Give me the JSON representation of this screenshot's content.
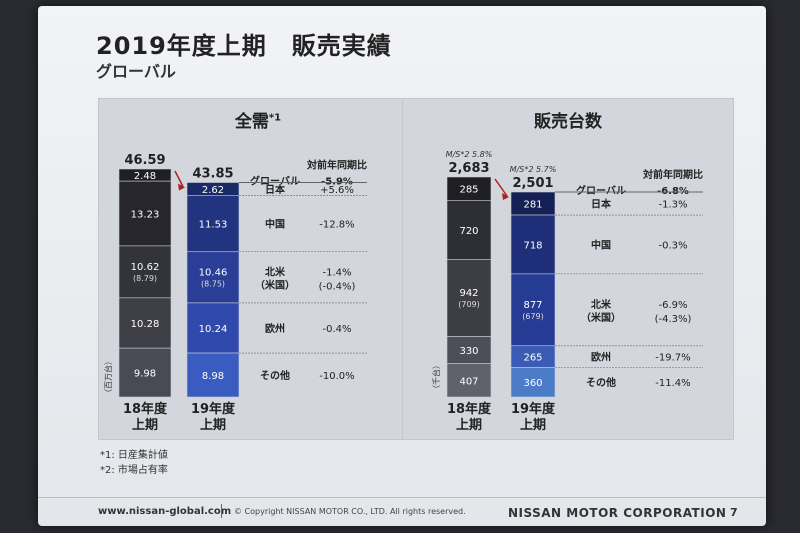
{
  "slide": {
    "title": "2019年度上期　販売実績",
    "subtitle": "グローバル",
    "footnote1": "*1: 日産集計値",
    "footnote2": "*2: 市場占有率",
    "url": "www.nissan-global.com",
    "copyright": "© Copyright NISSAN MOTOR CO., LTD. All rights reserved.",
    "brand": "NISSAN MOTOR CORPORATION",
    "page": "7"
  },
  "chart_data": [
    {
      "type": "bar",
      "title": "全需",
      "title_sup": "*1",
      "unit_label": "（百万台）",
      "ratio_header": "対前年同期比",
      "categories": [
        "18年度\n上期",
        "19年度\n上期"
      ],
      "totals": [
        "46.59",
        "43.85"
      ],
      "segments": [
        {
          "name": "日本",
          "values": [
            2.48,
            2.62
          ],
          "labels": [
            "2.48",
            "2.62"
          ],
          "sub": [
            "",
            ""
          ],
          "ratio": "+5.6%",
          "ratio_sub": ""
        },
        {
          "name": "中国",
          "values": [
            13.23,
            11.53
          ],
          "labels": [
            "13.23",
            "11.53"
          ],
          "sub": [
            "",
            ""
          ],
          "ratio": "-12.8%",
          "ratio_sub": ""
        },
        {
          "name": "北米\n（米国）",
          "values": [
            10.62,
            10.46
          ],
          "labels": [
            "10.62",
            "10.46"
          ],
          "sub": [
            "(8.79)",
            "(8.75)"
          ],
          "ratio": "-1.4%",
          "ratio_sub": "(-0.4%)"
        },
        {
          "name": "欧州",
          "values": [
            10.28,
            10.24
          ],
          "labels": [
            "10.28",
            "10.24"
          ],
          "sub": [
            "",
            ""
          ],
          "ratio": "-0.4%",
          "ratio_sub": ""
        },
        {
          "name": "その他",
          "values": [
            9.98,
            8.98
          ],
          "labels": [
            "9.98",
            "8.98"
          ],
          "sub": [
            "",
            ""
          ],
          "ratio": "-10.0%",
          "ratio_sub": ""
        }
      ],
      "global_label": "グローバル",
      "global_ratio": "-5.9%",
      "ms": [
        "",
        ""
      ]
    },
    {
      "type": "bar",
      "title": "販売台数",
      "title_sup": "",
      "unit_label": "（千台）",
      "ratio_header": "対前年同期比",
      "categories": [
        "18年度\n上期",
        "19年度\n上期"
      ],
      "totals": [
        "2,683",
        "2,501"
      ],
      "segments": [
        {
          "name": "日本",
          "values": [
            285,
            281
          ],
          "labels": [
            "285",
            "281"
          ],
          "sub": [
            "",
            ""
          ],
          "ratio": "-1.3%",
          "ratio_sub": ""
        },
        {
          "name": "中国",
          "values": [
            720,
            718
          ],
          "labels": [
            "720",
            "718"
          ],
          "sub": [
            "",
            ""
          ],
          "ratio": "-0.3%",
          "ratio_sub": ""
        },
        {
          "name": "北米\n（米国）",
          "values": [
            942,
            877
          ],
          "labels": [
            "942",
            "877"
          ],
          "sub": [
            "(709)",
            "(679)"
          ],
          "ratio": "-6.9%",
          "ratio_sub": "(-4.3%)"
        },
        {
          "name": "欧州",
          "values": [
            330,
            265
          ],
          "labels": [
            "330",
            "265"
          ],
          "sub": [
            "",
            ""
          ],
          "ratio": "-19.7%",
          "ratio_sub": ""
        },
        {
          "name": "その他",
          "values": [
            407,
            360
          ],
          "labels": [
            "407",
            "360"
          ],
          "sub": [
            "",
            ""
          ],
          "ratio": "-11.4%",
          "ratio_sub": ""
        }
      ],
      "global_label": "グローバル",
      "global_ratio": "-6.8%",
      "ms": [
        "M/S*2 5.8%",
        "M/S*2 5.7%"
      ]
    }
  ],
  "colors": {
    "left_2018": [
      "#1f1f24",
      "#26262c",
      "#33333b",
      "#3e3e47",
      "#4a4a55"
    ],
    "left_2019": [
      "#1a2a66",
      "#223480",
      "#2a3e98",
      "#304aac",
      "#3a5cc0"
    ],
    "right_2018": [
      "#1f1f24",
      "#2e2e35",
      "#3d3d46",
      "#4e4e58",
      "#61616c"
    ],
    "right_2019": [
      "#152055",
      "#1e2e78",
      "#263c94",
      "#3a5cb4",
      "#4c7cc8"
    ]
  }
}
